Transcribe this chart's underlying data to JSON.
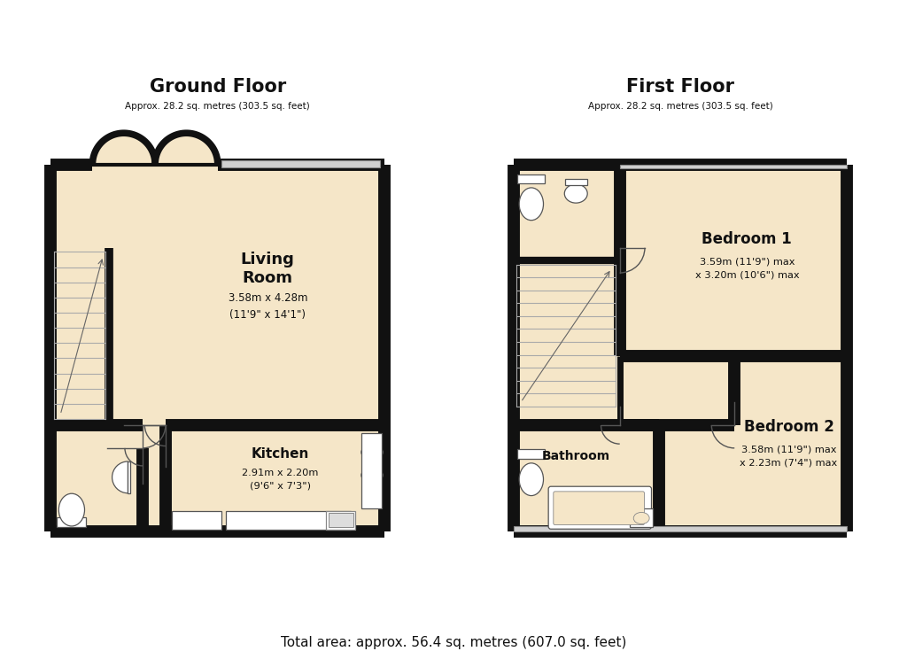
{
  "bg_color": "#ffffff",
  "wall_color": "#111111",
  "floor_color": "#f5e6c8",
  "title_ground": "Ground Floor",
  "subtitle_ground": "Approx. 28.2 sq. metres (303.5 sq. feet)",
  "title_first": "First Floor",
  "subtitle_first": "Approx. 28.2 sq. metres (303.5 sq. feet)",
  "footer": "Total area: approx. 56.4 sq. metres (607.0 sq. feet)",
  "living_room_label": "Living\nRoom",
  "living_room_dims": "3.58m x 4.28m\n(11'9\" x 14'1\")",
  "kitchen_label": "Kitchen",
  "kitchen_dims": "2.91m x 2.20m\n(9'6\" x 7'3\")",
  "bedroom1_label": "Bedroom 1",
  "bedroom1_dims": "3.59m (11'9\") max\nx 3.20m (10'6\") max",
  "bedroom2_label": "Bedroom 2",
  "bedroom2_dims": "3.58m (11'9\") max\nx 2.23m (7'4\") max",
  "bathroom_label": "Bathroom"
}
